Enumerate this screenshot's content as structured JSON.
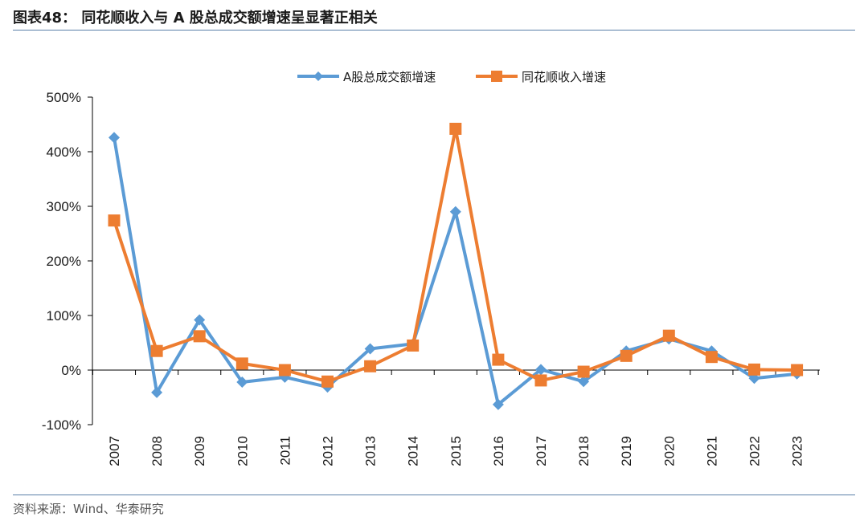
{
  "header": {
    "title": "图表48：  同花顺收入与 A 股总成交额增速呈显著正相关"
  },
  "footer": {
    "source": "资料来源：Wind、华泰研究"
  },
  "colors": {
    "series_a": "#5B9BD5",
    "series_b": "#ED7D31",
    "rule": "#5a7fa8"
  },
  "chart_data": {
    "type": "line",
    "title": "",
    "xlabel": "",
    "ylabel": "",
    "categories": [
      "2007",
      "2008",
      "2009",
      "2010",
      "2011",
      "2012",
      "2013",
      "2014",
      "2015",
      "2016",
      "2017",
      "2018",
      "2019",
      "2020",
      "2021",
      "2022",
      "2023"
    ],
    "ylim": [
      -100,
      500
    ],
    "yticks": [
      -100,
      0,
      100,
      200,
      300,
      400,
      500
    ],
    "ytick_labels": [
      "-100%",
      "0%",
      "100%",
      "200%",
      "300%",
      "400%",
      "500%"
    ],
    "y_unit": "%",
    "grid": false,
    "legend_position": "top-center",
    "series": [
      {
        "name": "A股总成交额增速",
        "marker": "diamond",
        "values": [
          426,
          -41,
          92,
          -22,
          -13,
          -31,
          39,
          48,
          290,
          -63,
          1,
          -21,
          35,
          57,
          35,
          -15,
          -7
        ]
      },
      {
        "name": "同花顺收入增速",
        "marker": "square",
        "values": [
          274,
          35,
          62,
          12,
          0,
          -21,
          7,
          45,
          442,
          19,
          -19,
          -3,
          26,
          63,
          24,
          1,
          0
        ]
      }
    ]
  }
}
